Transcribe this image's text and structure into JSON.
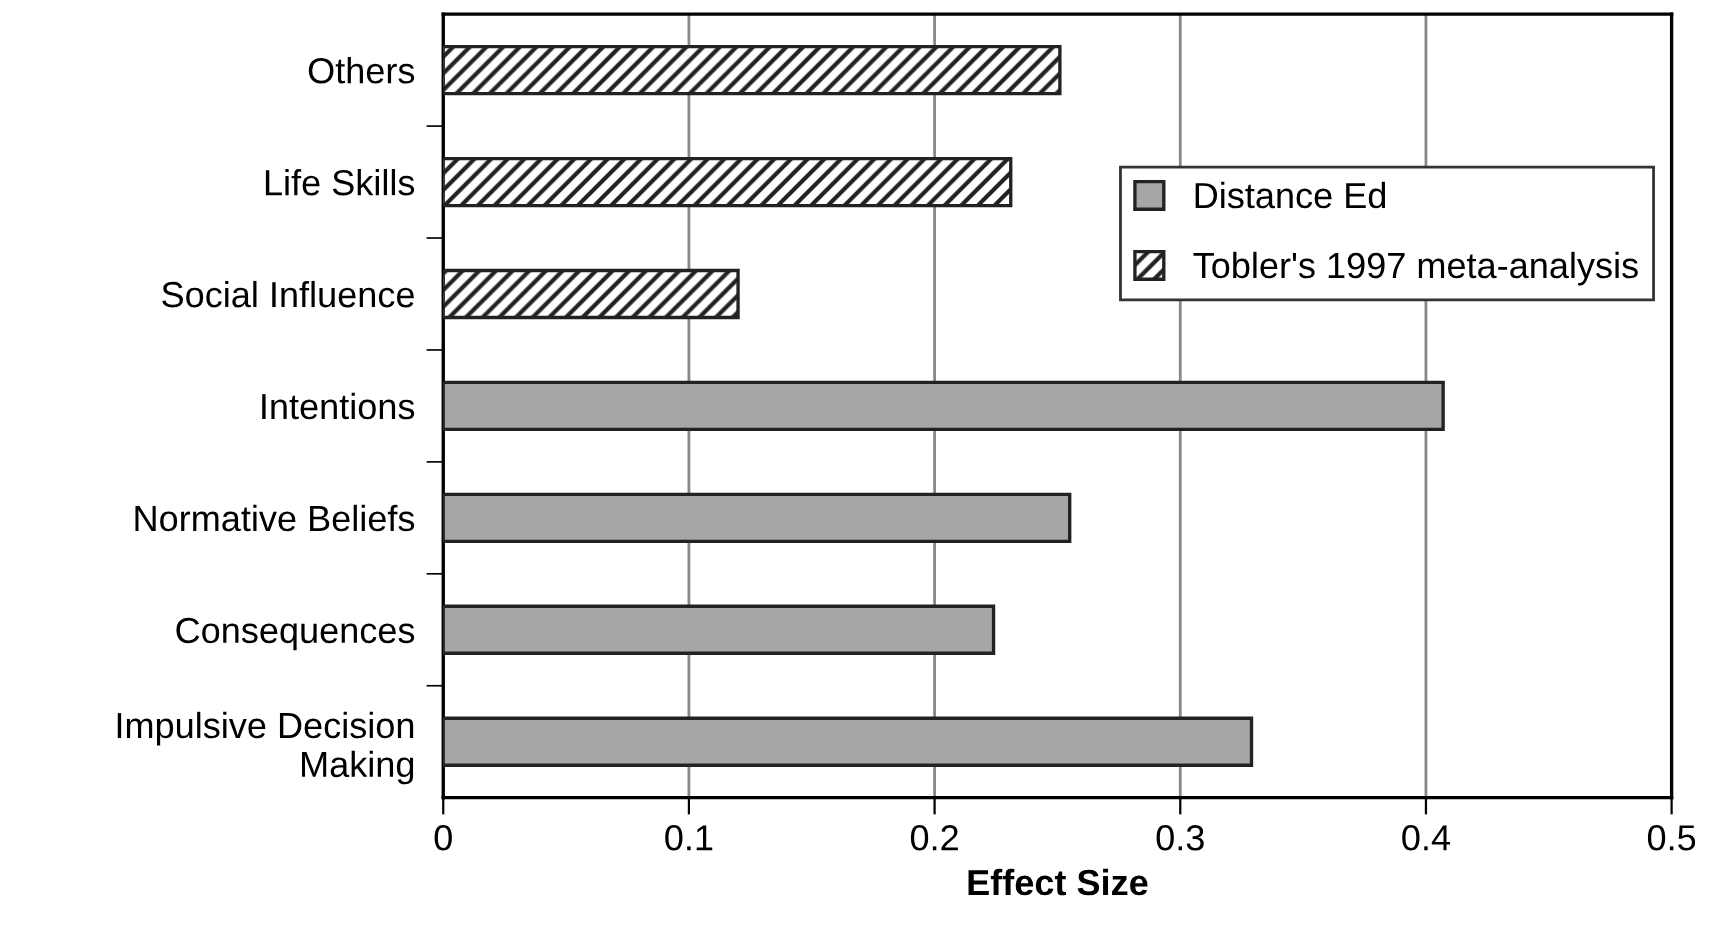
{
  "chart_data": {
    "type": "bar",
    "orientation": "horizontal",
    "xlabel": "Effect Size",
    "categories": [
      "Others",
      "Life Skills",
      "Social Influence",
      "Intentions",
      "Normative Beliefs",
      "Consequences",
      "Impulsive Decision\nMaking"
    ],
    "series": [
      {
        "name": "Distance Ed",
        "color": "#a6a6a6",
        "values": [
          null,
          null,
          null,
          0.407,
          0.255,
          0.224,
          0.329
        ]
      },
      {
        "name": "Tobler's 1997 meta-analysis",
        "color": "#222222",
        "values": [
          0.251,
          0.231,
          0.12,
          null,
          null,
          null,
          null
        ]
      }
    ],
    "xlim": [
      0,
      0.5
    ],
    "xticks": [
      0,
      0.1,
      0.2,
      0.3,
      0.4,
      0.5
    ],
    "grid": "x",
    "legend": "right"
  }
}
